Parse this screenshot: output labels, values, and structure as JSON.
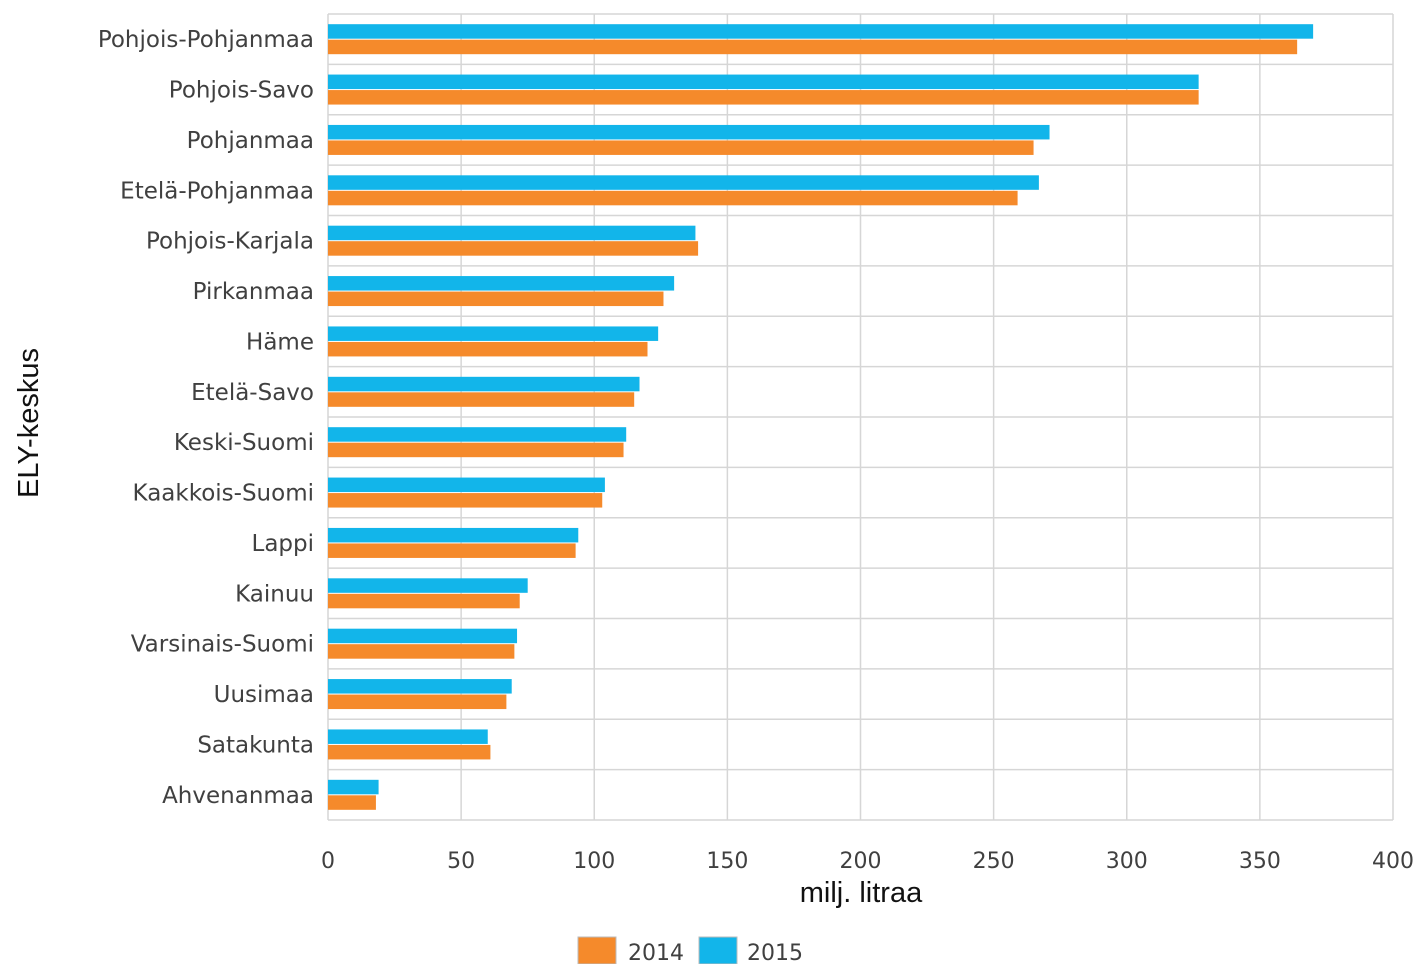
{
  "chart_data": {
    "type": "bar",
    "orientation": "horizontal",
    "title": "",
    "xlabel": "milj. litraa",
    "ylabel": "ELY-keskus",
    "xlim": [
      0,
      400
    ],
    "xticks": [
      0,
      50,
      100,
      150,
      200,
      250,
      300,
      350,
      400
    ],
    "grid": true,
    "legend_position": "bottom",
    "categories": [
      "Pohjois-Pohjanmaa",
      "Pohjois-Savo",
      "Pohjanmaa",
      "Etelä-Pohjanmaa",
      "Pohjois-Karjala",
      "Pirkanmaa",
      "Häme",
      "Etelä-Savo",
      "Keski-Suomi",
      "Kaakkois-Suomi",
      "Lappi",
      "Kainuu",
      "Varsinais-Suomi",
      "Uusimaa",
      "Satakunta",
      "Ahvenanmaa"
    ],
    "series": [
      {
        "name": "2015",
        "color": "#12b5ea",
        "values": [
          370,
          327,
          271,
          267,
          138,
          130,
          124,
          117,
          112,
          104,
          94,
          75,
          71,
          69,
          60,
          19
        ]
      },
      {
        "name": "2014",
        "color": "#f58a2b",
        "values": [
          364,
          327,
          265,
          259,
          139,
          126,
          120,
          115,
          111,
          103,
          93,
          72,
          70,
          67,
          61,
          18
        ]
      }
    ],
    "legend_order": [
      "2014",
      "2015"
    ]
  }
}
